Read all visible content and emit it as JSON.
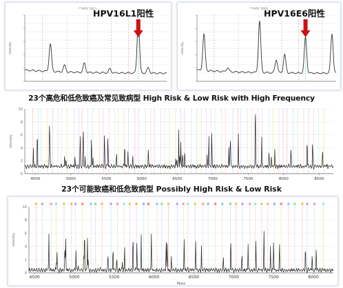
{
  "captions": {
    "group1": "23个高危和低危致癌及常见致病型 High Risk & Low Risk with High Frequency",
    "group2": "23个可能致癌和低危致病型 Possibly High Risk & Low Risk"
  },
  "chart_data": [
    {
      "type": "line",
      "id": "hpv16l1",
      "title": "HPV16L1阳性",
      "small_title": "**HPV 16L1",
      "ylabel": "Intensity",
      "marker_color": "#cc1111",
      "series": [
        {
          "peaks": [
            [
              0.18,
              0.42
            ],
            [
              0.28,
              0.1
            ],
            [
              0.42,
              0.14
            ],
            [
              0.6,
              0.06
            ],
            [
              0.8,
              0.78
            ],
            [
              0.87,
              0.08
            ]
          ]
        }
      ],
      "marker_positions": [
        0.8
      ]
    },
    {
      "type": "line",
      "id": "hpv16e6",
      "title": "HPV16E6阳性",
      "small_title": "**HPV 16E6",
      "ylabel": "Intensity",
      "marker_color": "#cc1111",
      "series": [
        {
          "peaks": [
            [
              0.05,
              0.55
            ],
            [
              0.22,
              0.06
            ],
            [
              0.45,
              0.78
            ],
            [
              0.57,
              0.2
            ],
            [
              0.63,
              0.28
            ],
            [
              0.78,
              0.55
            ],
            [
              0.97,
              0.6
            ]
          ]
        }
      ],
      "marker_positions": [
        0.78
      ]
    },
    {
      "type": "line",
      "id": "group1-spectrum",
      "ylabel": "Intensity",
      "x": [
        4500,
        5000,
        5500,
        6000,
        6500,
        7000,
        7500,
        8000,
        8500
      ],
      "xlim": [
        4350,
        8700
      ],
      "ylim": [
        0,
        10
      ]
    },
    {
      "type": "line",
      "id": "group2-spectrum",
      "xlabel": "Mass",
      "ylabel": "Intensity",
      "x": [
        4500,
        5000,
        5500,
        6000,
        6500,
        7000,
        7500,
        8000
      ],
      "xlim": [
        4430,
        8250
      ],
      "ylim": [
        0,
        10
      ]
    }
  ]
}
